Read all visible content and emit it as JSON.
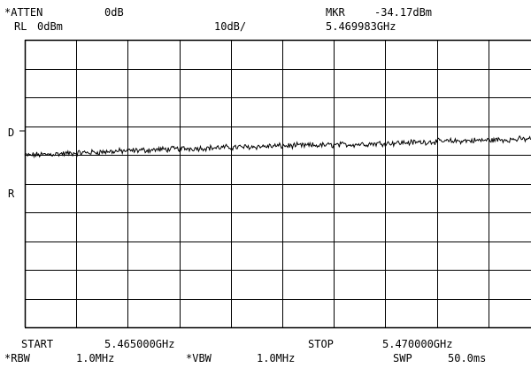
{
  "header": {
    "atten_label": "*ATTEN",
    "atten_value": "0dB",
    "rl_label": "RL",
    "rl_value": "0dBm",
    "scale": "10dB/",
    "mkr_label": "MKR",
    "mkr_amplitude": "-34.17dBm",
    "mkr_frequency": "5.469983GHz"
  },
  "side_labels": {
    "d_marker": "D",
    "r_marker": "R"
  },
  "footer": {
    "start_label": "START",
    "start_value": "5.465000GHz",
    "stop_label": "STOP",
    "stop_value": "5.470000GHz",
    "rbw_label": "*RBW",
    "rbw_value": "1.0MHz",
    "vbw_label": "*VBW",
    "vbw_value": "1.0MHz",
    "swp_label": "SWP",
    "swp_value": "50.0ms"
  },
  "chart_data": {
    "type": "line",
    "x_unit": "GHz",
    "y_unit": "dBm",
    "xlim": [
      5.465,
      5.47
    ],
    "ylim": [
      -100,
      0
    ],
    "grid": true,
    "grid_divisions": {
      "x": 10,
      "y": 10
    },
    "reference_level_dbm": 0,
    "scale_db_per_div": 10,
    "series": [
      {
        "x": [
          5.465,
          5.4655,
          5.466,
          5.4665,
          5.467,
          5.4675,
          5.468,
          5.4685,
          5.469,
          5.4695,
          5.47
        ],
        "y": [
          -40.2,
          -39.4,
          -38.6,
          -37.9,
          -37.4,
          -36.9,
          -36.6,
          -36.0,
          -35.4,
          -34.9,
          -34.4
        ]
      }
    ],
    "marker": {
      "x": 5.469983,
      "y": -34.17
    },
    "colors": {
      "trace": "#000000",
      "grid": "#000000",
      "background": "#ffffff"
    }
  }
}
